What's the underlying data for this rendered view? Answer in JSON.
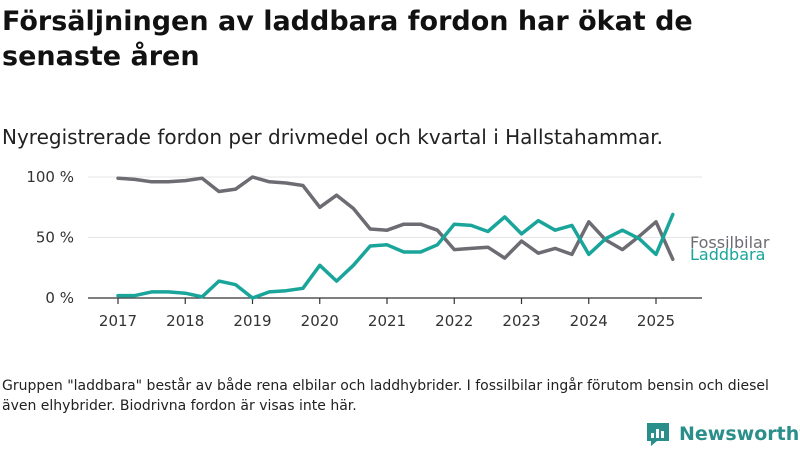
{
  "title": "Försäljningen av laddbara fordon har ökat de senaste åren",
  "subtitle": "Nyregistrerade fordon per drivmedel och kvartal i Hallstahammar.",
  "footnote": "Gruppen \"laddbara\" består av både rena elbilar och laddhybrider. I fossilbilar ingår förutom bensin och diesel även elhybrider. Biodrivna fordon är visas inte här.",
  "brand": {
    "name": "Newsworthy",
    "icon": "newsworthy-logo-icon",
    "color": "#2a8f8a"
  },
  "chart_data": {
    "type": "line",
    "x": [
      2017.0,
      2017.25,
      2017.5,
      2017.75,
      2018.0,
      2018.25,
      2018.5,
      2018.75,
      2019.0,
      2019.25,
      2019.5,
      2019.75,
      2020.0,
      2020.25,
      2020.5,
      2020.75,
      2021.0,
      2021.25,
      2021.5,
      2021.75,
      2022.0,
      2022.25,
      2022.5,
      2022.75,
      2023.0,
      2023.25,
      2023.5,
      2023.75,
      2024.0,
      2024.25,
      2024.5,
      2024.75,
      2025.0,
      2025.25
    ],
    "series": [
      {
        "name": "Fossilbilar",
        "color": "#6e6c73",
        "values": [
          99,
          98,
          96,
          96,
          97,
          99,
          88,
          90,
          100,
          96,
          95,
          93,
          75,
          85,
          74,
          57,
          56,
          61,
          61,
          56,
          40,
          41,
          42,
          33,
          47,
          37,
          41,
          36,
          63,
          48,
          40,
          51,
          63,
          32
        ]
      },
      {
        "name": "Laddbara",
        "color": "#1aa59b",
        "values": [
          2,
          2,
          5,
          5,
          4,
          1,
          14,
          11,
          0,
          5,
          6,
          8,
          27,
          14,
          27,
          43,
          44,
          38,
          38,
          44,
          61,
          60,
          55,
          67,
          53,
          64,
          56,
          60,
          36,
          49,
          56,
          49,
          36,
          69
        ]
      }
    ],
    "xticks": [
      "2017",
      "2018",
      "2019",
      "2020",
      "2021",
      "2022",
      "2023",
      "2024",
      "2025"
    ],
    "yticks": [
      "0 %",
      "50 %",
      "100 %"
    ],
    "ylim": [
      0,
      100
    ],
    "xlim": [
      2016.7,
      2025.7
    ],
    "grid": true
  }
}
